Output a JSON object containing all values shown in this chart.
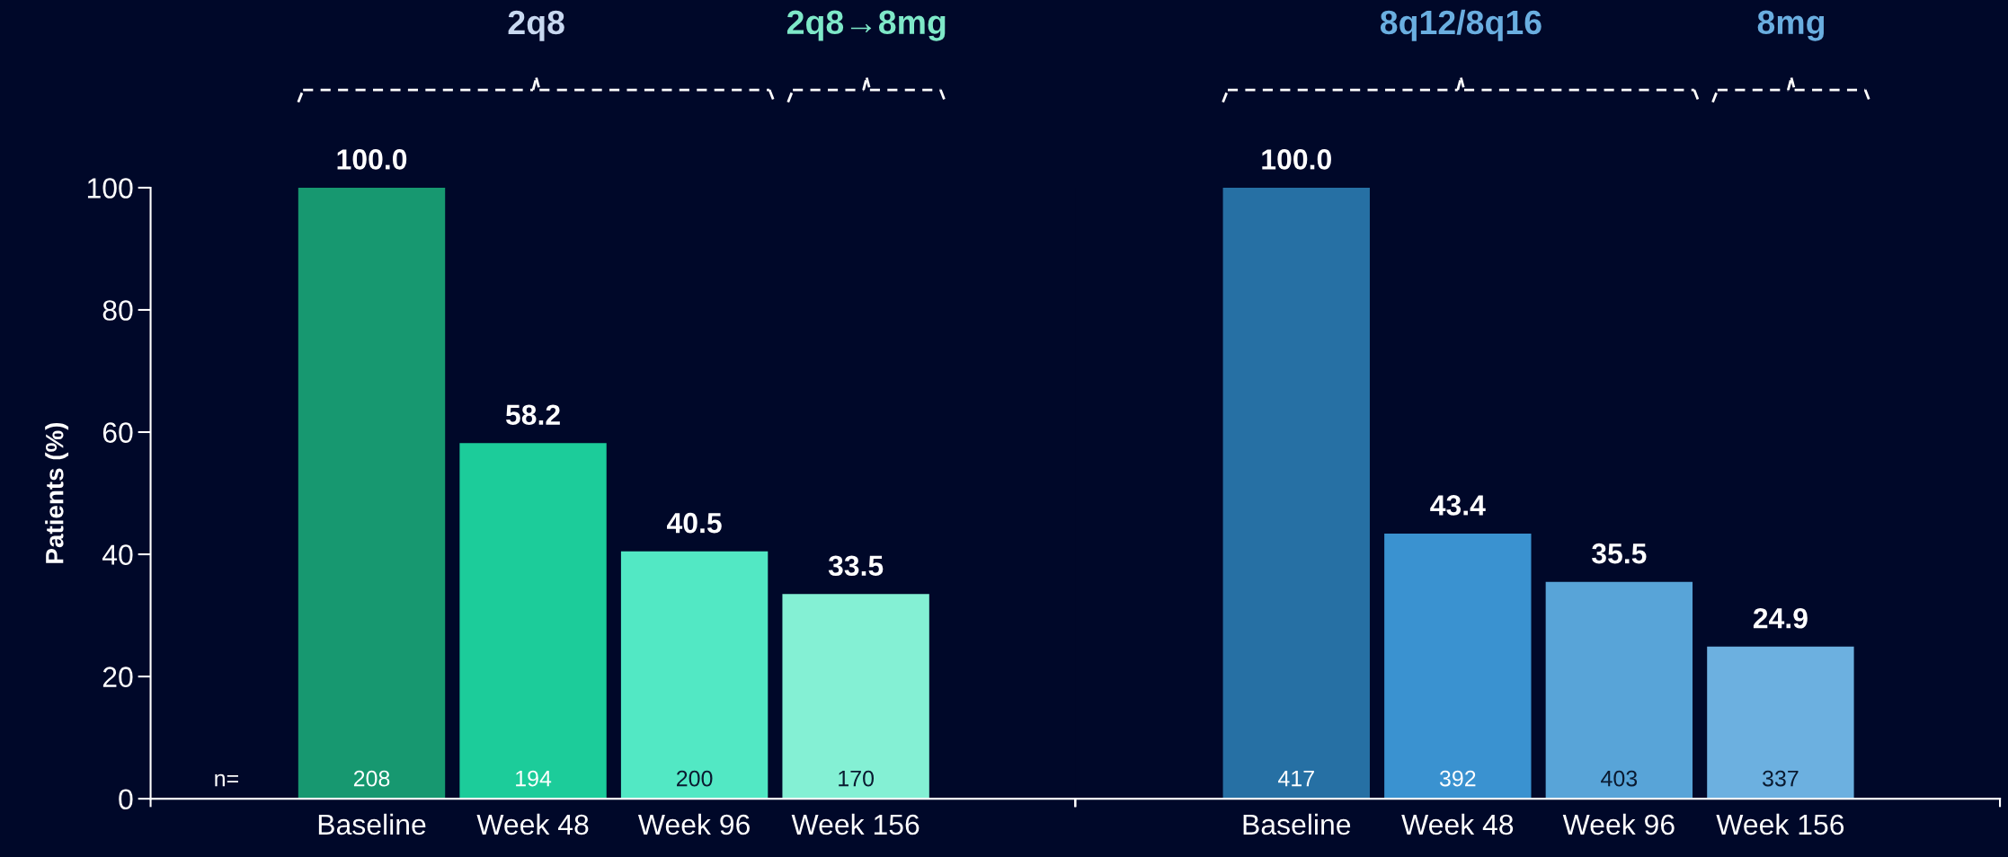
{
  "chart_data": [
    {
      "type": "bar",
      "ylabel": "Patients (%)",
      "categories": [
        "Baseline",
        "Week 48",
        "Week 96",
        "Week 156"
      ],
      "values": [
        100.0,
        58.2,
        40.5,
        33.5
      ],
      "colors": [
        "#179870",
        "#1ccc9a",
        "#52e8c4",
        "#84f0d4"
      ],
      "value_labels": [
        "100.0",
        "58.2",
        "40.5",
        "33.5"
      ],
      "ylim": [
        0,
        100
      ],
      "yticks": [
        0,
        20,
        40,
        60,
        80,
        100
      ],
      "grid": false,
      "legend": false,
      "annotations": [
        "2q8",
        "2q8→8mg",
        "n=",
        "208",
        "194",
        "200",
        "170"
      ]
    },
    {
      "type": "bar",
      "categories": [
        "Baseline",
        "Week 48",
        "Week 96",
        "Week 156"
      ],
      "values": [
        100.0,
        43.4,
        35.5,
        24.9
      ],
      "colors": [
        "#2670a4",
        "#3a92d0",
        "#58a4d8",
        "#6cb0e0"
      ],
      "value_labels": [
        "100.0",
        "43.4",
        "35.5",
        "24.9"
      ],
      "ylim": [
        0,
        100
      ],
      "tick_labels": "x",
      "grid": false,
      "legend": false,
      "annotations": [
        "8q12/8q16",
        "8mg",
        "417",
        "392",
        "403",
        "337"
      ]
    }
  ]
}
